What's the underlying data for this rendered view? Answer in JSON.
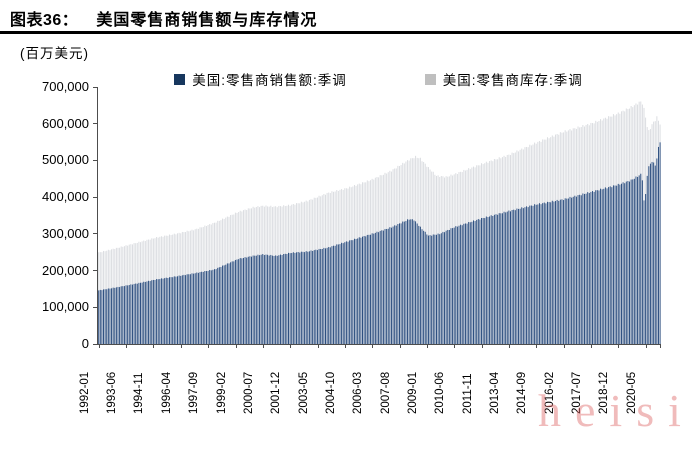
{
  "header": {
    "tag": "图表36：",
    "title": "美国零售商销售额与库存情况"
  },
  "unit_label": "(百万美元)",
  "watermark": "heisi",
  "colors": {
    "axis": "#4d4d4d",
    "sales_legend": "#17375E",
    "sales_bar": "#2D4F80",
    "inventory_legend": "#BFBFBF",
    "inventory_bar": "#DBDDE1"
  },
  "chart_data": {
    "type": "bar",
    "title": "美国零售商销售额与库存情况",
    "unit": "百万美元",
    "grid": false,
    "legend_position": "top",
    "bar_mode": "overlap-monthly",
    "x_start": "1992-01",
    "x_end": "2021-02",
    "months_total": 350,
    "ylim": [
      0,
      700000
    ],
    "y_tick_labels": [
      "0",
      "100,000",
      "200,000",
      "300,000",
      "400,000",
      "500,000",
      "600,000",
      "700,000"
    ],
    "y_tick_values": [
      0,
      100000,
      200000,
      300000,
      400000,
      500000,
      600000,
      700000
    ],
    "x_tick_labels": [
      "1992-01",
      "1993-06",
      "1994-11",
      "1996-04",
      "1997-09",
      "1999-02",
      "2000-07",
      "2001-12",
      "2003-05",
      "2004-10",
      "2006-03",
      "2007-08",
      "2009-01",
      "2010-06",
      "2011-11",
      "2013-04",
      "2014-09",
      "2016-02",
      "2017-07",
      "2018-12",
      "2020-05"
    ],
    "x_tick_month_indices": [
      0,
      17,
      34,
      51,
      68,
      85,
      102,
      119,
      136,
      153,
      170,
      187,
      204,
      221,
      238,
      255,
      272,
      289,
      306,
      323,
      340
    ],
    "series": [
      {
        "name": "美国:零售商销售额:季调",
        "key": "sales",
        "legend_color": "#17375E",
        "bar_color": "#2D4F80",
        "anchors_month_value": [
          [
            0,
            146000
          ],
          [
            12,
            155000
          ],
          [
            24,
            165000
          ],
          [
            36,
            176000
          ],
          [
            48,
            184000
          ],
          [
            60,
            193000
          ],
          [
            72,
            203000
          ],
          [
            87,
            232000
          ],
          [
            96,
            240000
          ],
          [
            102,
            244000
          ],
          [
            110,
            240000
          ],
          [
            119,
            248000
          ],
          [
            130,
            252000
          ],
          [
            143,
            263000
          ],
          [
            155,
            280000
          ],
          [
            170,
            300000
          ],
          [
            182,
            318000
          ],
          [
            193,
            340000
          ],
          [
            196,
            338000
          ],
          [
            200,
            318000
          ],
          [
            205,
            295000
          ],
          [
            212,
            300000
          ],
          [
            221,
            318000
          ],
          [
            238,
            342000
          ],
          [
            255,
            362000
          ],
          [
            272,
            380000
          ],
          [
            289,
            394000
          ],
          [
            306,
            414000
          ],
          [
            323,
            434000
          ],
          [
            331,
            446000
          ],
          [
            337,
            462000
          ],
          [
            338,
            448000
          ],
          [
            339,
            390000
          ],
          [
            340,
            408000
          ],
          [
            341,
            460000
          ],
          [
            342,
            482000
          ],
          [
            343,
            492000
          ],
          [
            344,
            497000
          ],
          [
            345,
            492000
          ],
          [
            346,
            488000
          ],
          [
            347,
            505000
          ],
          [
            348,
            535000
          ],
          [
            349,
            552000
          ]
        ]
      },
      {
        "name": "美国:零售商库存:季调",
        "key": "inventory",
        "legend_color": "#BFBFBF",
        "bar_color": "#DBDDE1",
        "anchors_month_value": [
          [
            0,
            249000
          ],
          [
            12,
            262000
          ],
          [
            24,
            276000
          ],
          [
            36,
            290000
          ],
          [
            48,
            300000
          ],
          [
            60,
            312000
          ],
          [
            72,
            330000
          ],
          [
            87,
            360000
          ],
          [
            96,
            372000
          ],
          [
            102,
            376000
          ],
          [
            110,
            374000
          ],
          [
            119,
            378000
          ],
          [
            130,
            390000
          ],
          [
            143,
            412000
          ],
          [
            155,
            425000
          ],
          [
            170,
            448000
          ],
          [
            182,
            472000
          ],
          [
            193,
            502000
          ],
          [
            197,
            510000
          ],
          [
            200,
            505000
          ],
          [
            205,
            480000
          ],
          [
            210,
            458000
          ],
          [
            216,
            455000
          ],
          [
            221,
            462000
          ],
          [
            238,
            490000
          ],
          [
            255,
            515000
          ],
          [
            272,
            548000
          ],
          [
            289,
            578000
          ],
          [
            306,
            600000
          ],
          [
            323,
            628000
          ],
          [
            331,
            645000
          ],
          [
            336,
            658000
          ],
          [
            337,
            660000
          ],
          [
            338,
            655000
          ],
          [
            339,
            640000
          ],
          [
            340,
            618000
          ],
          [
            341,
            592000
          ],
          [
            342,
            580000
          ],
          [
            343,
            588000
          ],
          [
            344,
            598000
          ],
          [
            345,
            604000
          ],
          [
            346,
            610000
          ],
          [
            347,
            618000
          ],
          [
            348,
            608000
          ],
          [
            349,
            600000
          ]
        ]
      }
    ]
  }
}
